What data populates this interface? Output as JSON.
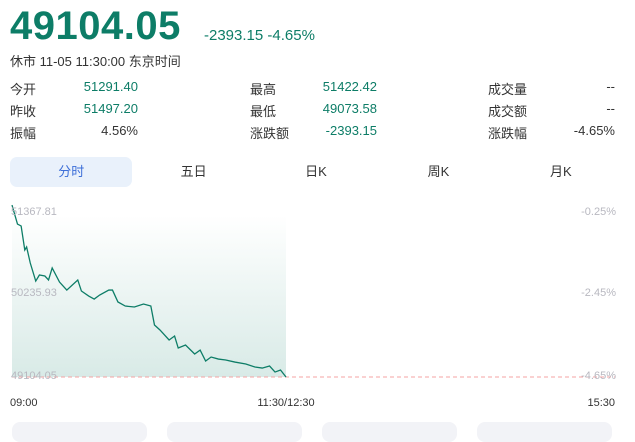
{
  "quote": {
    "price": "49104.05",
    "change": "-2393.15",
    "change_pct": "-4.65%",
    "status": "休市 11-05 11:30:00 东京时间"
  },
  "stats": [
    [
      {
        "label": "今开",
        "value": "51291.40"
      },
      {
        "label": "最高",
        "value": "51422.42"
      },
      {
        "label": "成交量",
        "value": "--"
      }
    ],
    [
      {
        "label": "昨收",
        "value": "51497.20"
      },
      {
        "label": "最低",
        "value": "49073.58"
      },
      {
        "label": "成交额",
        "value": "--"
      }
    ],
    [
      {
        "label": "振幅",
        "value": "4.56%"
      },
      {
        "label": "涨跌额",
        "value": "-2393.15"
      },
      {
        "label": "涨跌幅",
        "value": "-4.65%"
      }
    ]
  ],
  "tabs": [
    {
      "label": "分时",
      "active": true
    },
    {
      "label": "五日"
    },
    {
      "label": "日K"
    },
    {
      "label": "周K"
    },
    {
      "label": "月K"
    }
  ],
  "colors": {
    "down": "#0d7d67",
    "active_tab": "#3d6fd8",
    "prev_close_line": "#f4a3a3"
  },
  "chart_data": {
    "type": "line",
    "y_labels_left": [
      "51367.81",
      "50235.93",
      "49104.05"
    ],
    "y_labels_right": [
      "-0.25%",
      "-2.45%",
      "-4.65%"
    ],
    "x_labels": [
      "09:00",
      "11:30/12:30",
      "15:30"
    ],
    "ylim": [
      49104.05,
      51367.81
    ],
    "reference_line": 49104.05,
    "points": [
      [
        "09:00",
        51394
      ],
      [
        "09:03",
        51141
      ],
      [
        "09:05",
        51115
      ],
      [
        "09:07",
        50795
      ],
      [
        "09:08",
        50835
      ],
      [
        "09:10",
        50622
      ],
      [
        "09:13",
        50382
      ],
      [
        "09:15",
        50462
      ],
      [
        "09:18",
        50449
      ],
      [
        "09:20",
        50396
      ],
      [
        "09:22",
        50556
      ],
      [
        "09:26",
        50369
      ],
      [
        "09:30",
        50262
      ],
      [
        "09:36",
        50396
      ],
      [
        "09:38",
        50249
      ],
      [
        "09:42",
        50182
      ],
      [
        "09:45",
        50142
      ],
      [
        "09:48",
        50196
      ],
      [
        "09:53",
        50262
      ],
      [
        "09:55",
        50262
      ],
      [
        "09:58",
        50103
      ],
      [
        "10:02",
        50049
      ],
      [
        "10:07",
        50036
      ],
      [
        "10:12",
        50076
      ],
      [
        "10:16",
        50049
      ],
      [
        "10:18",
        49796
      ],
      [
        "10:21",
        49730
      ],
      [
        "10:26",
        49597
      ],
      [
        "10:29",
        49650
      ],
      [
        "10:31",
        49490
      ],
      [
        "10:35",
        49530
      ],
      [
        "10:40",
        49410
      ],
      [
        "10:43",
        49463
      ],
      [
        "10:46",
        49317
      ],
      [
        "10:49",
        49370
      ],
      [
        "10:53",
        49343
      ],
      [
        "10:57",
        49330
      ],
      [
        "11:02",
        49303
      ],
      [
        "11:08",
        49277
      ],
      [
        "11:13",
        49237
      ],
      [
        "11:17",
        49223
      ],
      [
        "11:21",
        49250
      ],
      [
        "11:24",
        49170
      ],
      [
        "11:27",
        49197
      ],
      [
        "11:30",
        49104.05
      ]
    ]
  }
}
